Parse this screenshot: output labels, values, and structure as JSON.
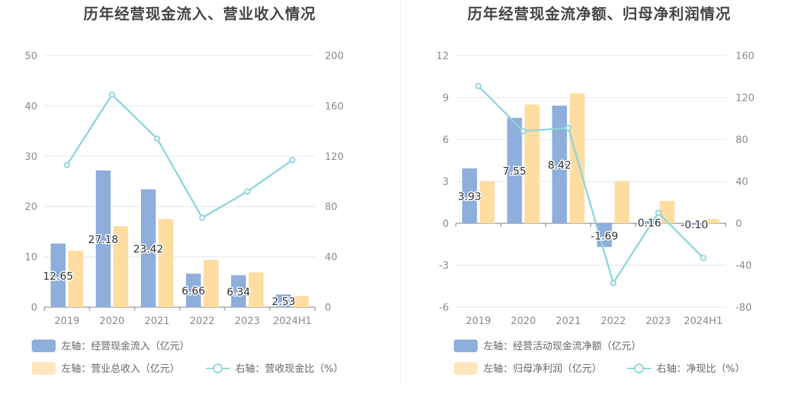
{
  "chart_data": [
    {
      "type": "bar",
      "title": "历年经营现金流入、营业收入情况",
      "categories": [
        "2019",
        "2020",
        "2021",
        "2022",
        "2023",
        "2024H1"
      ],
      "left_axis": {
        "ylim": [
          0,
          50
        ],
        "ticks": [
          0,
          10,
          20,
          30,
          40,
          50
        ]
      },
      "right_axis": {
        "ylim": [
          0,
          200
        ],
        "ticks": [
          0,
          40,
          80,
          120,
          160,
          200
        ]
      },
      "series": [
        {
          "name": "左轴：经营现金流入（亿元）",
          "axis": "left",
          "kind": "bar",
          "color": "#8eaedc",
          "values": [
            12.65,
            27.18,
            23.42,
            6.66,
            6.34,
            2.53
          ],
          "labels": [
            "12.65",
            "27.18",
            "23.42",
            "6.66",
            "6.34",
            "2.53"
          ]
        },
        {
          "name": "左轴：营业总收入（亿元）",
          "axis": "left",
          "kind": "bar",
          "color": "#ffdca0",
          "values": [
            11.2,
            16.1,
            17.5,
            9.4,
            6.9,
            2.2
          ]
        },
        {
          "name": "右轴：营收现金比（%）",
          "axis": "right",
          "kind": "line",
          "color": "#8ed6dc",
          "values": [
            113,
            169,
            134,
            71,
            92,
            117
          ]
        }
      ],
      "grid": true,
      "legend_position": "bottom-left"
    },
    {
      "type": "bar",
      "title": "历年经营现金流净额、归母净利润情况",
      "categories": [
        "2019",
        "2020",
        "2021",
        "2022",
        "2023",
        "2024H1"
      ],
      "left_axis": {
        "ylim": [
          -6,
          12
        ],
        "ticks": [
          -6,
          -3,
          0,
          3,
          6,
          9,
          12
        ]
      },
      "right_axis": {
        "ylim": [
          -80,
          160
        ],
        "ticks": [
          -80,
          -40,
          0,
          40,
          80,
          120,
          160
        ]
      },
      "series": [
        {
          "name": "左轴：经营活动现金流净额（亿元）",
          "axis": "left",
          "kind": "bar",
          "color": "#8eaedc",
          "values": [
            3.93,
            7.55,
            8.42,
            -1.69,
            0.16,
            -0.1
          ],
          "labels": [
            "3.93",
            "7.55",
            "8.42",
            "-1.69",
            "0.16",
            "-0.10"
          ]
        },
        {
          "name": "左轴：归母净利润（亿元）",
          "axis": "left",
          "kind": "bar",
          "color": "#ffdca0",
          "values": [
            3.0,
            8.5,
            9.3,
            3.0,
            1.6,
            0.3
          ]
        },
        {
          "name": "右轴：净现比（%）",
          "axis": "right",
          "kind": "line",
          "color": "#8ed6dc",
          "values": [
            131,
            88,
            91,
            -57,
            10,
            -33
          ]
        }
      ],
      "grid": true,
      "legend_position": "bottom-left"
    }
  ]
}
